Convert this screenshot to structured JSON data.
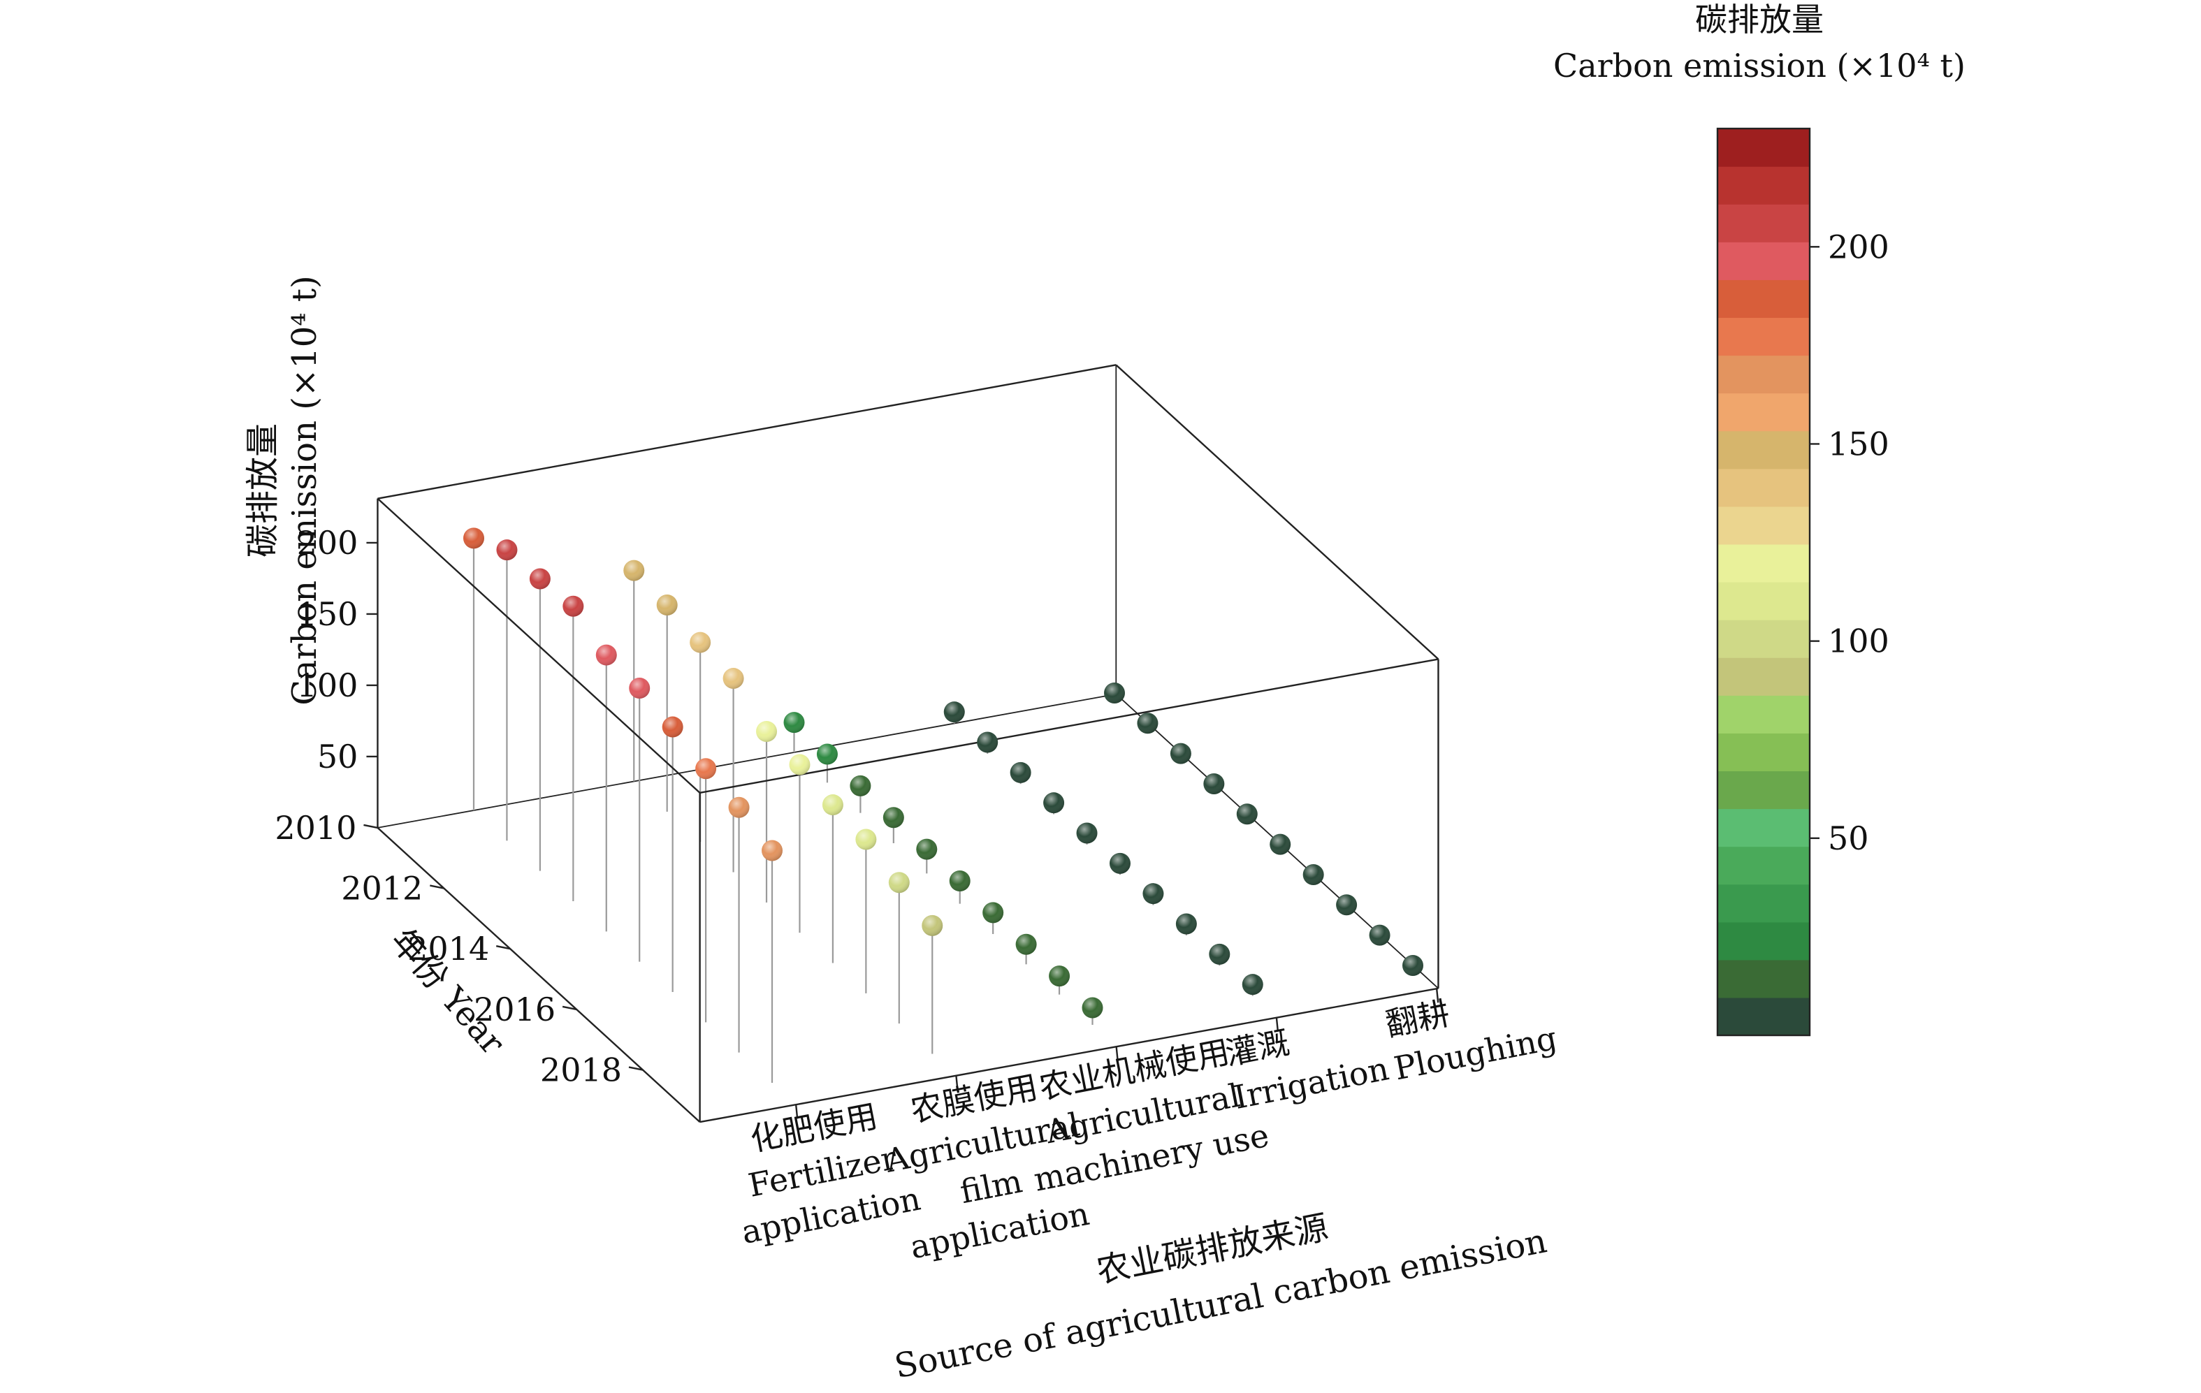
{
  "chart_data": {
    "type": "scatter",
    "subtype": "3d-stem",
    "title": "",
    "x_axis": {
      "title_cn": "农业碳排放来源",
      "title_en": "Source of agricultural carbon emission",
      "categories": [
        {
          "cn": "化肥使用",
          "en": [
            "Fertilizer",
            "application"
          ]
        },
        {
          "cn": "农膜使用",
          "en": [
            "Agricultural",
            "film",
            "application"
          ]
        },
        {
          "cn": "农业机械使用",
          "en": [
            "Agricultural",
            "machinery use"
          ]
        },
        {
          "cn": "灌溉",
          "en": [
            "Irrigation"
          ]
        },
        {
          "cn": "翻耕",
          "en": [
            "Ploughing"
          ]
        }
      ]
    },
    "y_axis": {
      "title_cn": "年份",
      "title_en": "Year",
      "values": [
        2010,
        2011,
        2012,
        2013,
        2014,
        2015,
        2016,
        2017,
        2018,
        2019
      ],
      "tick_labels": [
        "2010",
        "2012",
        "2014",
        "2016",
        "2018"
      ]
    },
    "z_axis": {
      "title_cn": "碳排放量",
      "title_en": "Carbon emission (×10⁴ t)",
      "range": [
        0,
        230
      ],
      "ticks": [
        "50",
        "100",
        "150",
        "200"
      ]
    },
    "series": [
      {
        "category": "化肥使用",
        "values": [
          191,
          204,
          205,
          207,
          194,
          192,
          186,
          178,
          172,
          163
        ]
      },
      {
        "category": "农膜使用",
        "values": [
          148,
          145,
          140,
          136,
          120,
          118,
          111,
          108,
          99,
          90
        ]
      },
      {
        "category": "农业机械使用",
        "values": [
          21,
          20,
          19,
          18,
          17,
          16,
          15,
          14,
          13,
          12
        ]
      },
      {
        "category": "灌溉",
        "values": [
          8,
          8,
          8,
          8,
          8,
          8,
          8,
          8,
          8,
          8
        ]
      },
      {
        "category": "翻耕",
        "values": [
          1,
          1,
          1,
          1,
          1,
          1,
          1,
          1,
          1,
          1
        ]
      }
    ],
    "colorbar": {
      "title_cn": "碳排放量",
      "title_en": "Carbon emission (×10⁴ t)",
      "range": [
        0,
        230
      ],
      "ticks": [
        50,
        100,
        150,
        200
      ],
      "colors": [
        "#2b4a3a",
        "#3a6b35",
        "#2e8a42",
        "#3a9a4e",
        "#4aaa5a",
        "#5bbd72",
        "#6aa84c",
        "#86bf55",
        "#a0d36a",
        "#c3c57a",
        "#cfd987",
        "#dde88f",
        "#e9f19a",
        "#ebd58f",
        "#e6c37e",
        "#d6b56c",
        "#f0a66c",
        "#e3945f",
        "#e8784e",
        "#d85e3a",
        "#df5a60",
        "#c94444",
        "#b8332f",
        "#9e1f1f"
      ]
    },
    "grid": false,
    "legend": "colorbar-right"
  }
}
